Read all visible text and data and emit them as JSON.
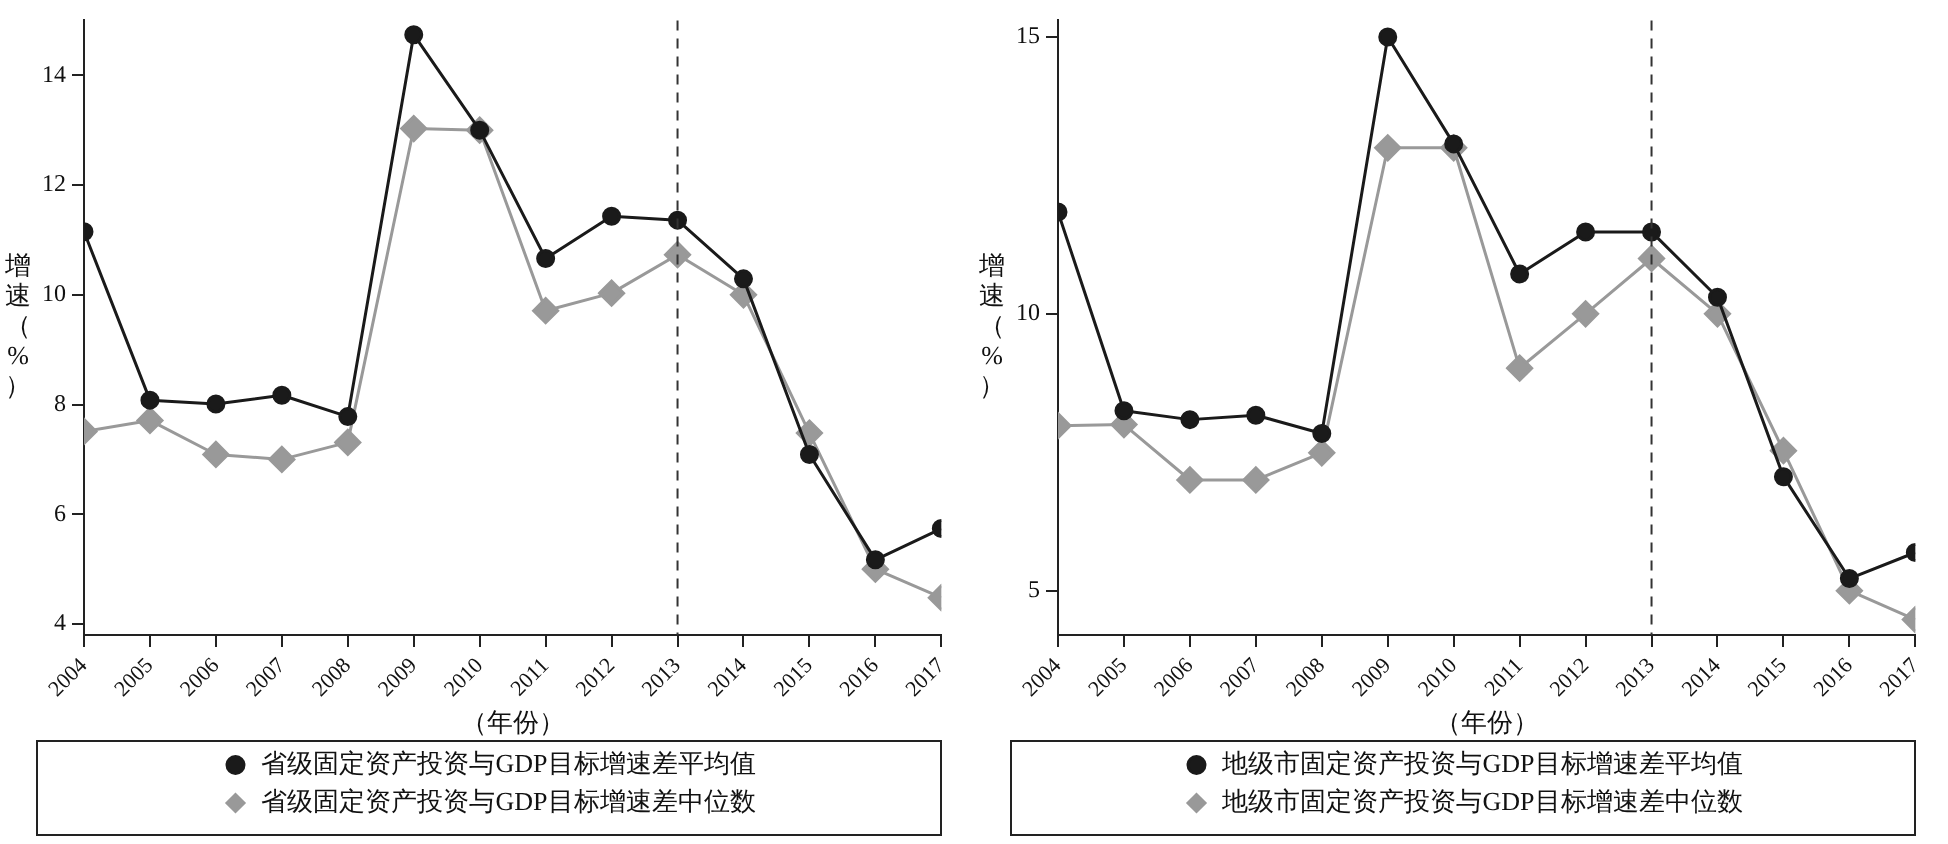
{
  "chart_data": [
    {
      "type": "line",
      "xlabel": "（年份）",
      "ylabel": "增速（%）",
      "x": [
        2004,
        2005,
        2006,
        2007,
        2008,
        2009,
        2010,
        2011,
        2012,
        2013,
        2014,
        2015,
        2016,
        2017
      ],
      "xlim": [
        2004,
        2017
      ],
      "xticks": [
        2004,
        2005,
        2006,
        2007,
        2008,
        2009,
        2010,
        2011,
        2012,
        2013,
        2014,
        2015,
        2016,
        2017
      ],
      "ylim": [
        3.8,
        15
      ],
      "yticks": [
        4,
        6,
        8,
        10,
        12,
        14
      ],
      "grid": false,
      "legend": "bottom",
      "ref_lines": [
        {
          "axis": "x",
          "value": 2013,
          "color": "#333333",
          "line_style": "dashed"
        }
      ],
      "series": [
        {
          "name": "省级固定资产投资与GDP目标增速差平均值",
          "color": "#1a1a1a",
          "marker": "circle",
          "values": [
            11.15,
            8.08,
            8.01,
            8.17,
            7.78,
            14.74,
            13.0,
            10.66,
            11.43,
            11.36,
            10.29,
            7.09,
            5.17,
            5.74
          ]
        },
        {
          "name": "省级固定资产投资与GDP目标增速差中位数",
          "color": "#999999",
          "marker": "diamond",
          "values": [
            7.51,
            7.71,
            7.09,
            7.0,
            7.31,
            13.03,
            13.0,
            9.71,
            10.03,
            10.73,
            10.0,
            7.48,
            5.0,
            4.48
          ]
        }
      ]
    },
    {
      "type": "line",
      "xlabel": "（年份）",
      "ylabel": "增速（%）",
      "x": [
        2004,
        2005,
        2006,
        2007,
        2008,
        2009,
        2010,
        2011,
        2012,
        2013,
        2014,
        2015,
        2016,
        2017
      ],
      "xlim": [
        2004,
        2017
      ],
      "xticks": [
        2004,
        2005,
        2006,
        2007,
        2008,
        2009,
        2010,
        2011,
        2012,
        2013,
        2014,
        2015,
        2016,
        2017
      ],
      "ylim": [
        4.2,
        15.3
      ],
      "yticks": [
        5,
        10,
        15
      ],
      "grid": false,
      "legend": "bottom",
      "ref_lines": [
        {
          "axis": "x",
          "value": 2013,
          "color": "#333333",
          "line_style": "dashed"
        }
      ],
      "series": [
        {
          "name": "地级市固定资产投资与GDP目标增速差平均值",
          "color": "#1a1a1a",
          "marker": "circle",
          "values": [
            11.84,
            8.25,
            8.09,
            8.17,
            7.84,
            15.0,
            13.07,
            10.72,
            11.48,
            11.48,
            10.3,
            7.06,
            5.22,
            5.69
          ]
        },
        {
          "name": "地级市固定资产投资与GDP目标增速差中位数",
          "color": "#999999",
          "marker": "diamond",
          "values": [
            7.98,
            8.0,
            7.0,
            7.0,
            7.49,
            13.0,
            13.0,
            9.02,
            10.0,
            11.0,
            10.0,
            7.53,
            5.0,
            4.48
          ]
        }
      ]
    }
  ]
}
